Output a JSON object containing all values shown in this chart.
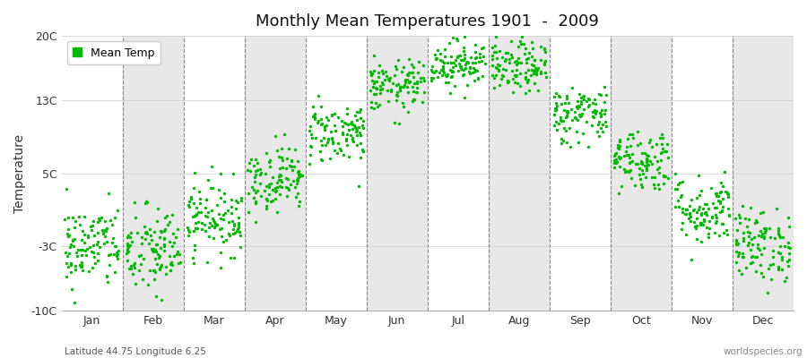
{
  "title": "Monthly Mean Temperatures 1901  -  2009",
  "ylabel": "Temperature",
  "bottom_left_label": "Latitude 44.75 Longitude 6.25",
  "bottom_right_label": "worldspecies.org",
  "legend_label": "Mean Temp",
  "yticks": [
    -10,
    -3,
    5,
    13,
    20
  ],
  "ytick_labels": [
    "-10C",
    "-3C",
    "5C",
    "13C",
    "20C"
  ],
  "ylim": [
    -10,
    20
  ],
  "months": [
    "Jan",
    "Feb",
    "Mar",
    "Apr",
    "May",
    "Jun",
    "Jul",
    "Aug",
    "Sep",
    "Oct",
    "Nov",
    "Dec"
  ],
  "monthly_means": [
    -3.0,
    -3.5,
    0.2,
    4.5,
    9.5,
    14.5,
    17.0,
    16.5,
    11.5,
    6.5,
    1.0,
    -2.8
  ],
  "monthly_stds": [
    2.3,
    2.5,
    2.0,
    1.8,
    1.7,
    1.4,
    1.3,
    1.4,
    1.6,
    1.7,
    1.9,
    2.0
  ],
  "n_years": 109,
  "dot_color": "#00bb00",
  "dot_size": 6,
  "band_color_even": "#ffffff",
  "band_color_odd": "#e8e8e8",
  "vline_color": "#777777",
  "seed": 42
}
